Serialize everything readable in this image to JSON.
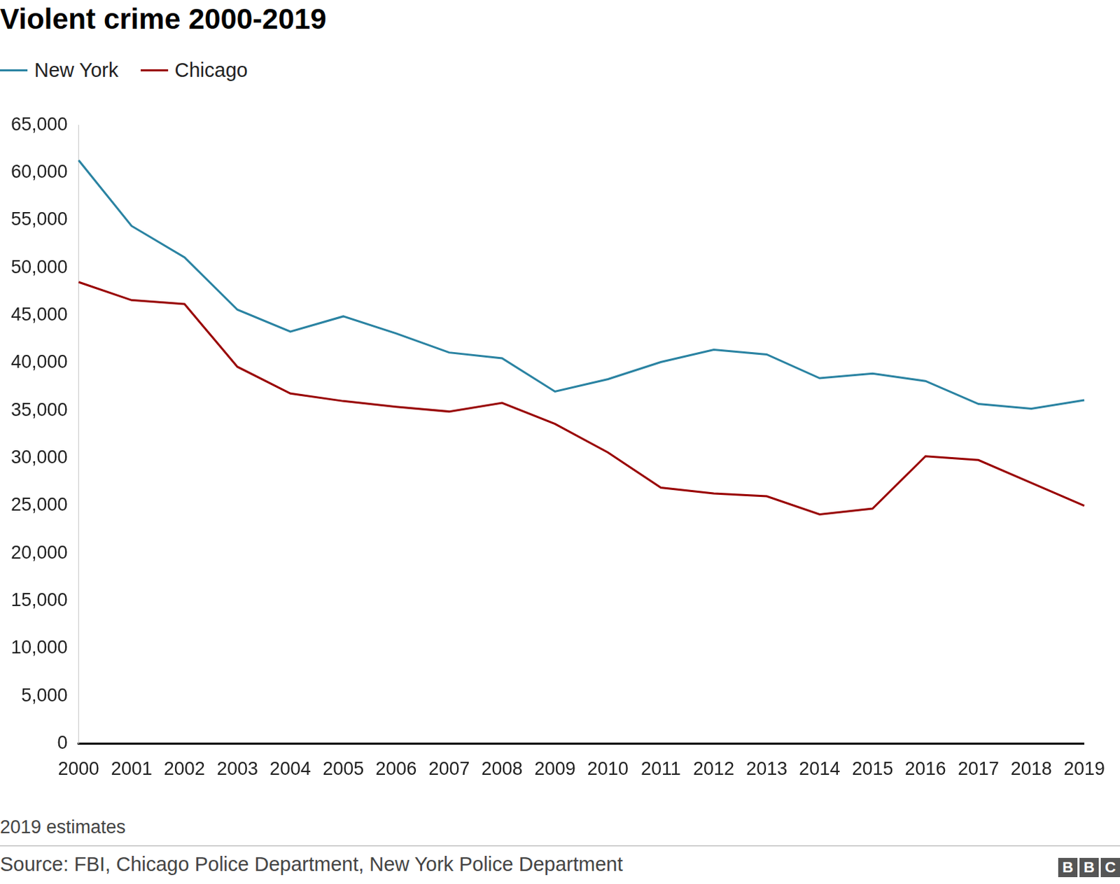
{
  "chart_data": {
    "type": "line",
    "title": "Violent crime 2000-2019",
    "categories": [
      "2000",
      "2001",
      "2002",
      "2003",
      "2004",
      "2005",
      "2006",
      "2007",
      "2008",
      "2009",
      "2010",
      "2011",
      "2012",
      "2013",
      "2014",
      "2015",
      "2016",
      "2017",
      "2018",
      "2019"
    ],
    "series": [
      {
        "name": "New York",
        "color": "#2a83a2",
        "values": [
          61300,
          54400,
          51100,
          45600,
          43300,
          44900,
          43100,
          41100,
          40500,
          37000,
          38300,
          40100,
          41400,
          40900,
          38400,
          38900,
          38100,
          35700,
          35200,
          36100
        ]
      },
      {
        "name": "Chicago",
        "color": "#990000",
        "values": [
          48500,
          46600,
          46200,
          39600,
          36800,
          36000,
          35400,
          34900,
          35800,
          33600,
          30600,
          26900,
          26300,
          26000,
          24100,
          24700,
          30200,
          29800,
          27400,
          25000
        ]
      }
    ],
    "ylim": [
      0,
      65000
    ],
    "yticks": [
      0,
      {
        "value": 5000,
        "label": "5,000"
      },
      {
        "value": 10000,
        "label": "10,000"
      },
      {
        "value": 15000,
        "label": "15,000"
      },
      {
        "value": 20000,
        "label": "20,000"
      },
      {
        "value": 25000,
        "label": "25,000"
      },
      {
        "value": 30000,
        "label": "30,000"
      },
      {
        "value": 35000,
        "label": "35,000"
      },
      {
        "value": 40000,
        "label": "40,000"
      },
      {
        "value": 45000,
        "label": "45,000"
      },
      {
        "value": 50000,
        "label": "50,000"
      },
      {
        "value": 55000,
        "label": "55,000"
      },
      {
        "value": 60000,
        "label": "60,000"
      },
      {
        "value": 65000,
        "label": "65,000"
      }
    ],
    "grid": false,
    "legend": "top-left",
    "note": "2019 estimates",
    "source": "Source: FBI, Chicago Police Department, New York Police Department",
    "logo": "BBC"
  }
}
